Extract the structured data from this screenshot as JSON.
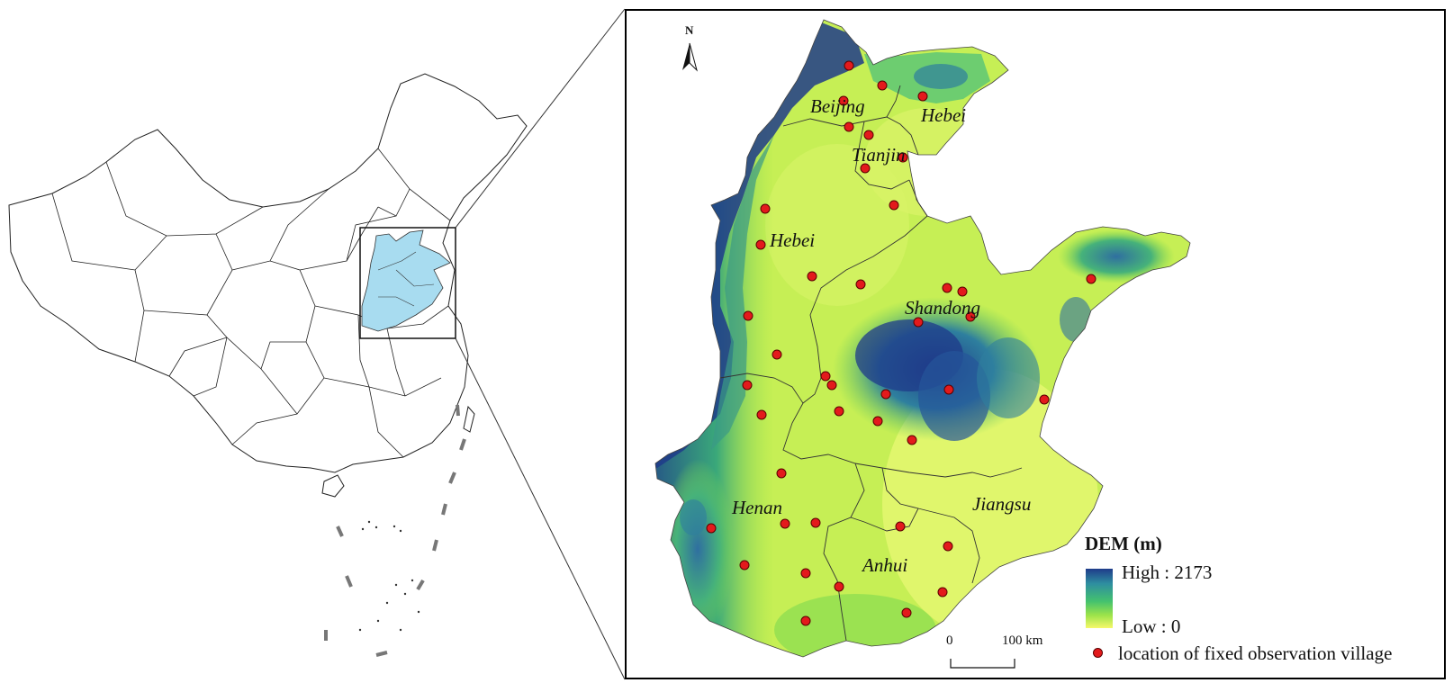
{
  "map_labels": {
    "beijing": "Beijing",
    "hebei_ne": "Hebei",
    "tianjin": "Tianjin",
    "hebei": "Hebei",
    "shandong": "Shandong",
    "henan": "Henan",
    "jiangsu": "Jiangsu",
    "anhui": "Anhui"
  },
  "north_arrow": {
    "label": "N"
  },
  "legend": {
    "title": "DEM (m)",
    "high": "High : 2173",
    "low": "Low : 0",
    "point_label": "location of fixed observation village"
  },
  "scale_bar": {
    "zero": "0",
    "distance": "100 km"
  },
  "colors": {
    "dem_low": "#f6f86a",
    "dem_mid": "#9be34a",
    "dem_high": "#1f3b8a",
    "village_point": "#e31a1c",
    "study_area_overview": "#a8dcf0"
  },
  "village_count": 45
}
